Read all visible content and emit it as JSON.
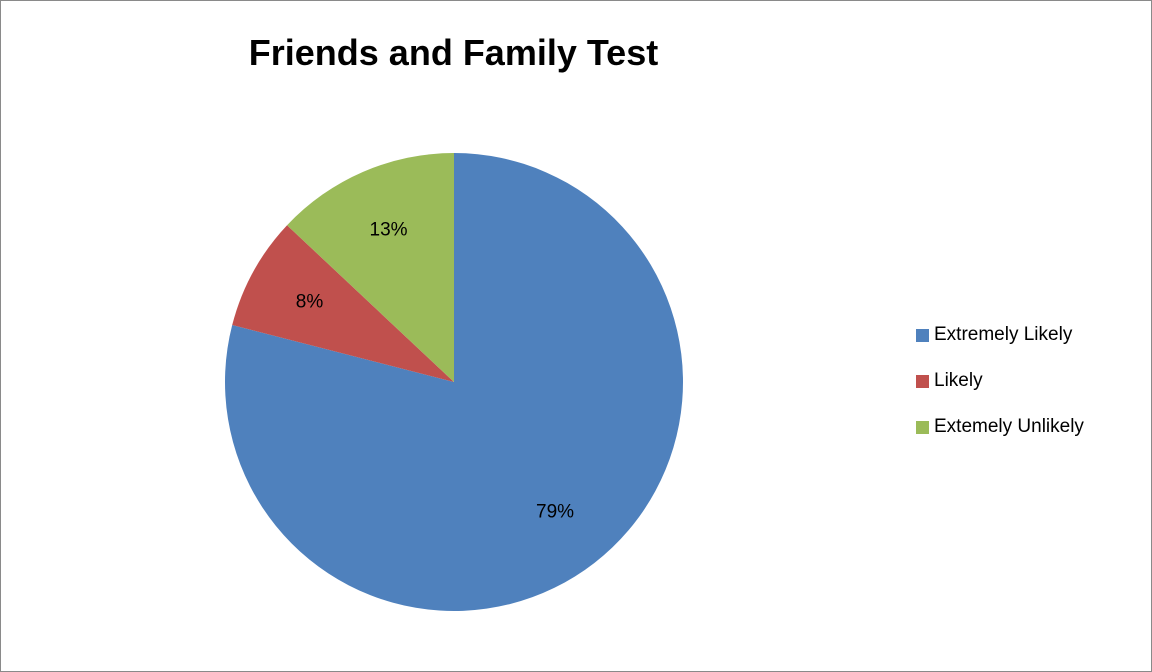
{
  "chart_data": {
    "type": "pie",
    "title": "Friends and Family Test",
    "categories": [
      "Extremely Likely",
      "Likely",
      "Extemely Unlikely"
    ],
    "values": [
      79,
      8,
      13
    ],
    "value_labels": [
      "79%",
      "8%",
      "13%"
    ],
    "colors": [
      "#4F81BD",
      "#C0504D",
      "#9BBB59"
    ],
    "start_angle_deg": 0,
    "direction": "clockwise",
    "legend_position": "right"
  }
}
